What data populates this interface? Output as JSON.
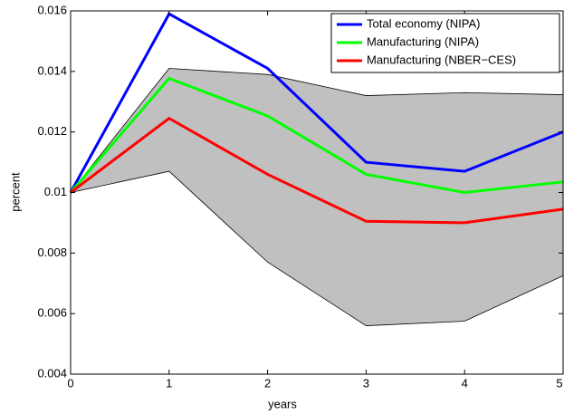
{
  "chart_data": {
    "type": "line",
    "x": [
      0,
      1,
      2,
      3,
      4,
      5
    ],
    "xlabel": "years",
    "ylabel": "percent",
    "xlim": [
      0,
      5
    ],
    "ylim": [
      0.004,
      0.016
    ],
    "xticks": [
      0,
      1,
      2,
      3,
      4,
      5
    ],
    "yticks": [
      0.004,
      0.006,
      0.008,
      0.01,
      0.012,
      0.014,
      0.016
    ],
    "band": {
      "color": "#c0c0c0",
      "upper": [
        0.01,
        0.0141,
        0.0139,
        0.0132,
        0.0133,
        0.01323
      ],
      "lower": [
        0.01,
        0.0107,
        0.0077,
        0.0056,
        0.00575,
        0.00725
      ]
    },
    "series": [
      {
        "name": "Total economy (NIPA)",
        "color": "#0000ff",
        "values": [
          0.01,
          0.0159,
          0.0141,
          0.011,
          0.0107,
          0.012
        ]
      },
      {
        "name": "Manufacturing (NIPA)",
        "color": "#00ff00",
        "values": [
          0.01,
          0.01377,
          0.01253,
          0.0106,
          0.01,
          0.01035
        ]
      },
      {
        "name": "Manufacturing (NBER−CES)",
        "color": "#ff0000",
        "values": [
          0.01,
          0.01245,
          0.0106,
          0.00905,
          0.009,
          0.00945
        ]
      }
    ],
    "legend": "top-right"
  }
}
